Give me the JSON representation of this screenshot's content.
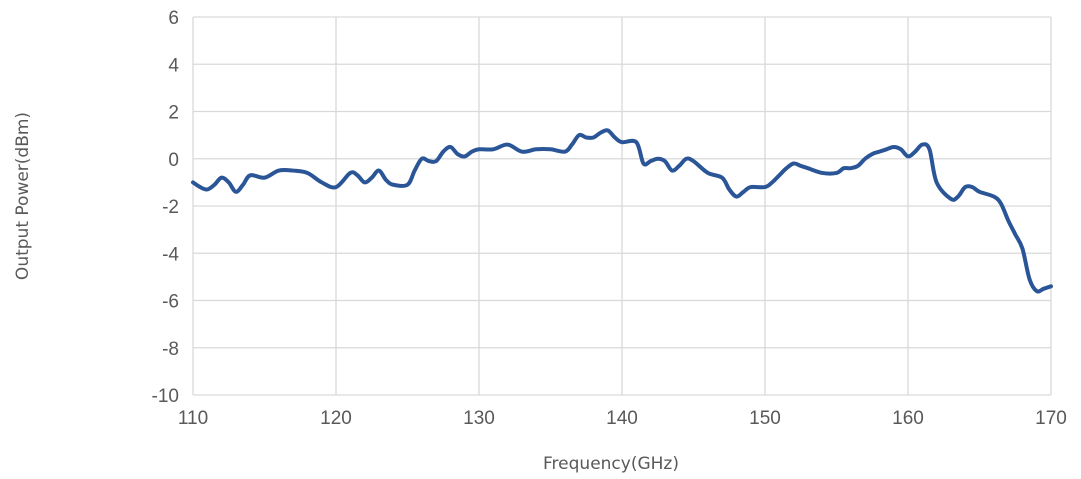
{
  "chart_data": {
    "type": "line",
    "xlabel": "Frequency(GHz)",
    "ylabel": "Output Power(dBm)",
    "xlim": [
      110,
      170
    ],
    "ylim": [
      -10,
      6
    ],
    "x_ticks": [
      "110",
      "120",
      "130",
      "140",
      "150",
      "160",
      "170"
    ],
    "y_ticks": [
      "6",
      "4",
      "2",
      "0",
      "-2",
      "-4",
      "-6",
      "-8",
      "-10"
    ],
    "grid": true,
    "colors": {
      "line": "#2a5597",
      "grid": "#d9d9d9"
    },
    "series": [
      {
        "x": [
          110,
          110.5,
          111,
          111.5,
          112,
          112.5,
          113,
          113.5,
          114,
          115,
          116,
          117,
          118,
          119,
          120,
          121,
          121.5,
          122,
          122.5,
          123,
          123.5,
          124,
          125,
          125.5,
          126,
          126.5,
          127,
          127.5,
          128,
          128.5,
          129,
          129.5,
          130,
          131,
          132,
          133,
          134,
          135,
          136,
          136.5,
          137,
          137.5,
          138,
          138.5,
          139,
          139.5,
          140,
          141,
          141.5,
          142,
          142.5,
          143,
          143.5,
          144,
          144.5,
          145,
          146,
          147,
          147.5,
          148,
          148.5,
          149,
          150,
          150.5,
          151,
          151.5,
          152,
          152.5,
          153,
          154,
          155,
          155.5,
          156,
          156.5,
          157,
          157.5,
          158,
          158.5,
          159,
          159.5,
          160,
          160.5,
          161,
          161.5,
          162,
          163,
          163.5,
          164,
          164.5,
          165,
          166,
          166.5,
          167,
          167.5,
          168,
          168.5,
          169,
          169.5,
          170
        ],
        "values": [
          -1.0,
          -1.2,
          -1.3,
          -1.1,
          -0.8,
          -1.0,
          -1.4,
          -1.1,
          -0.7,
          -0.8,
          -0.5,
          -0.5,
          -0.6,
          -1.0,
          -1.2,
          -0.6,
          -0.7,
          -1.0,
          -0.8,
          -0.5,
          -0.9,
          -1.1,
          -1.1,
          -0.5,
          0.0,
          -0.1,
          -0.1,
          0.3,
          0.5,
          0.2,
          0.1,
          0.3,
          0.4,
          0.4,
          0.6,
          0.3,
          0.4,
          0.4,
          0.3,
          0.6,
          1.0,
          0.9,
          0.9,
          1.1,
          1.2,
          0.9,
          0.7,
          0.7,
          -0.2,
          -0.1,
          0.0,
          -0.1,
          -0.5,
          -0.3,
          0.0,
          -0.1,
          -0.6,
          -0.8,
          -1.3,
          -1.6,
          -1.4,
          -1.2,
          -1.2,
          -1.0,
          -0.7,
          -0.4,
          -0.2,
          -0.3,
          -0.4,
          -0.6,
          -0.6,
          -0.4,
          -0.4,
          -0.3,
          0.0,
          0.2,
          0.3,
          0.4,
          0.5,
          0.4,
          0.1,
          0.3,
          0.6,
          0.4,
          -1.0,
          -1.7,
          -1.6,
          -1.2,
          -1.2,
          -1.4,
          -1.6,
          -1.9,
          -2.6,
          -3.2,
          -3.8,
          -5.1,
          -5.6,
          -5.5,
          -5.4
        ]
      }
    ]
  }
}
